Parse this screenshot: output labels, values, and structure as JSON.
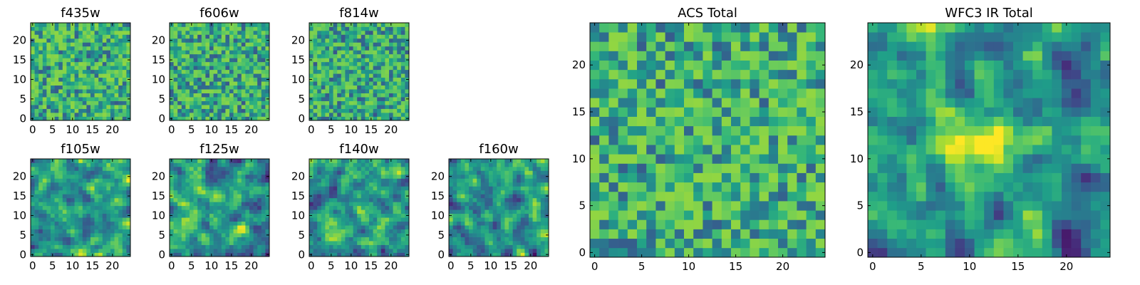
{
  "chart_data": [
    {
      "type": "heatmap",
      "title": "f435w",
      "size": 25,
      "xticks": [
        0,
        5,
        10,
        15,
        20
      ],
      "yticks": [
        0,
        5,
        10,
        15,
        20
      ],
      "colormap": "viridis",
      "smooth": false,
      "seed": 11,
      "bias": 0.62
    },
    {
      "type": "heatmap",
      "title": "f606w",
      "size": 25,
      "xticks": [
        0,
        5,
        10,
        15,
        20
      ],
      "yticks": [
        0,
        5,
        10,
        15,
        20
      ],
      "colormap": "viridis",
      "smooth": false,
      "seed": 23,
      "bias": 0.6
    },
    {
      "type": "heatmap",
      "title": "f814w",
      "size": 25,
      "xticks": [
        0,
        5,
        10,
        15,
        20
      ],
      "yticks": [
        0,
        5,
        10,
        15,
        20
      ],
      "colormap": "viridis",
      "smooth": false,
      "seed": 37,
      "bias": 0.58
    },
    {
      "type": "heatmap",
      "title": "f105w",
      "size": 25,
      "xticks": [
        0,
        5,
        10,
        15,
        20
      ],
      "yticks": [
        0,
        5,
        10,
        15,
        20
      ],
      "colormap": "viridis",
      "smooth": true,
      "seed": 41,
      "bias": 0.6
    },
    {
      "type": "heatmap",
      "title": "f125w",
      "size": 25,
      "xticks": [
        0,
        5,
        10,
        15,
        20
      ],
      "yticks": [
        0,
        5,
        10,
        15,
        20
      ],
      "colormap": "viridis",
      "smooth": true,
      "seed": 53,
      "bias": 0.6
    },
    {
      "type": "heatmap",
      "title": "f140w",
      "size": 25,
      "xticks": [
        0,
        5,
        10,
        15,
        20
      ],
      "yticks": [
        0,
        5,
        10,
        15,
        20
      ],
      "colormap": "viridis",
      "smooth": true,
      "seed": 67,
      "bias": 0.62
    },
    {
      "type": "heatmap",
      "title": "f160w",
      "size": 25,
      "xticks": [
        0,
        5,
        10,
        15,
        20
      ],
      "yticks": [
        0,
        5,
        10,
        15,
        20
      ],
      "colormap": "viridis",
      "smooth": true,
      "seed": 79,
      "bias": 0.58
    },
    {
      "type": "heatmap",
      "title": "ACS Total",
      "size": 25,
      "xticks": [
        0,
        5,
        10,
        15,
        20
      ],
      "yticks": [
        0,
        5,
        10,
        15,
        20
      ],
      "colormap": "viridis",
      "smooth": false,
      "seed": 97,
      "bias": 0.63
    },
    {
      "type": "heatmap",
      "title": "WFC3 IR Total",
      "size": 25,
      "xticks": [
        0,
        5,
        10,
        15,
        20
      ],
      "yticks": [
        0,
        5,
        10,
        15,
        20
      ],
      "colormap": "viridis",
      "smooth": true,
      "seed": 131,
      "bias": 0.5,
      "peak": {
        "x": 12,
        "y": 11.5,
        "amplitude": 0.55
      }
    }
  ]
}
